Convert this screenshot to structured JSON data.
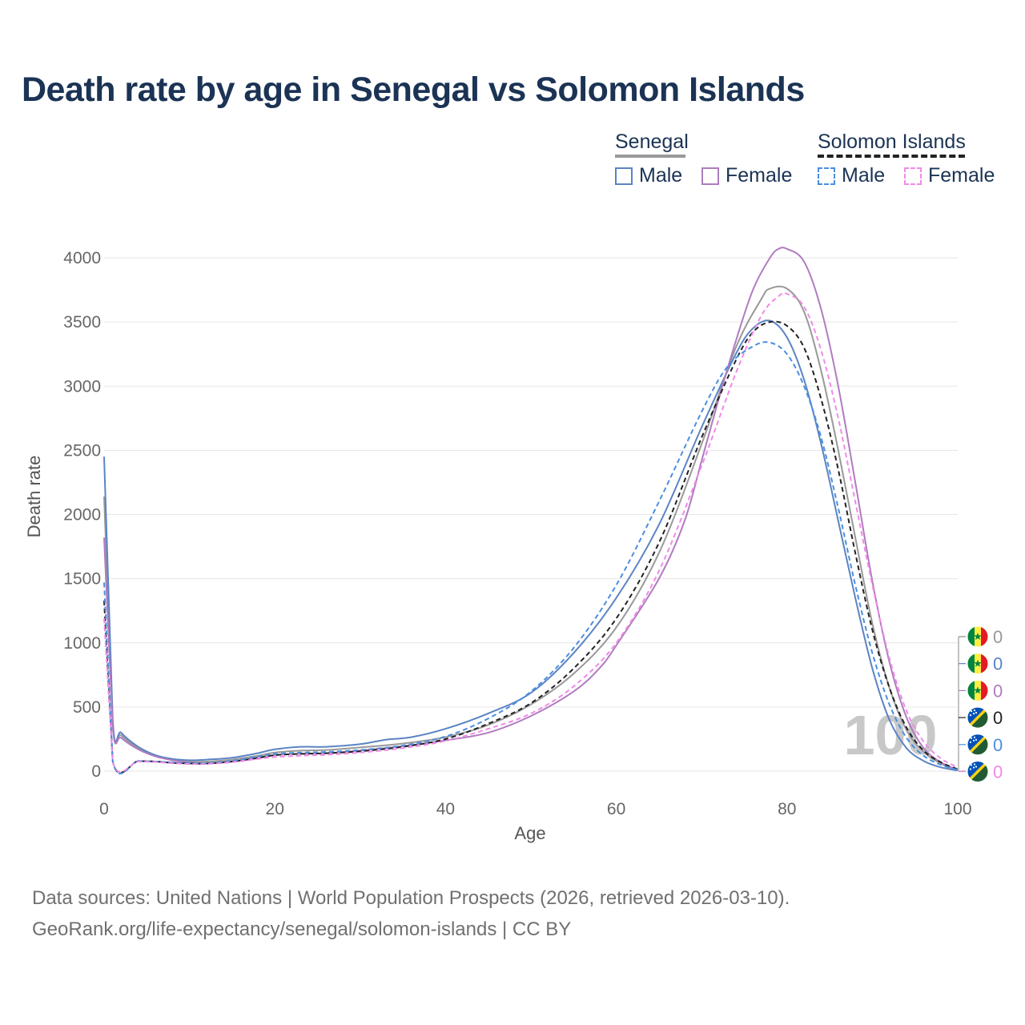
{
  "title": "Death rate by age in Senegal vs Solomon Islands",
  "legend": {
    "groups": [
      {
        "name": "Senegal",
        "underline_color": "#999999",
        "underline_style": "solid",
        "items": [
          {
            "label": "Male",
            "color": "#5b84c4",
            "dashed": false
          },
          {
            "label": "Female",
            "color": "#b07cc0",
            "dashed": false
          }
        ]
      },
      {
        "name": "Solomon Islands",
        "underline_color": "#222222",
        "underline_style": "dashed",
        "items": [
          {
            "label": "Male",
            "color": "#4a8ee0",
            "dashed": true
          },
          {
            "label": "Female",
            "color": "#f08ae8",
            "dashed": true
          }
        ]
      }
    ]
  },
  "chart_data": {
    "type": "line",
    "title": "Death rate by age in Senegal vs Solomon Islands",
    "xlabel": "Age",
    "ylabel": "Death rate",
    "xlim": [
      0,
      100
    ],
    "ylim": [
      0,
      4000
    ],
    "xticks": [
      0,
      20,
      40,
      60,
      80,
      100
    ],
    "yticks": [
      0,
      500,
      1000,
      1500,
      2000,
      2500,
      3000,
      3500,
      4000
    ],
    "grid": true,
    "watermark": "100",
    "series": [
      {
        "name": "Senegal (total)",
        "color": "#999999",
        "dashed": false,
        "points": [
          [
            0,
            2140
          ],
          [
            1,
            380
          ],
          [
            2,
            280
          ],
          [
            4,
            180
          ],
          [
            6,
            120
          ],
          [
            8,
            90
          ],
          [
            10,
            75
          ],
          [
            12,
            75
          ],
          [
            15,
            90
          ],
          [
            18,
            120
          ],
          [
            20,
            145
          ],
          [
            23,
            160
          ],
          [
            26,
            165
          ],
          [
            30,
            185
          ],
          [
            35,
            215
          ],
          [
            40,
            265
          ],
          [
            45,
            360
          ],
          [
            50,
            520
          ],
          [
            55,
            760
          ],
          [
            60,
            1120
          ],
          [
            65,
            1700
          ],
          [
            70,
            2550
          ],
          [
            74,
            3300
          ],
          [
            77,
            3680
          ],
          [
            78,
            3760
          ],
          [
            80,
            3760
          ],
          [
            82,
            3580
          ],
          [
            84,
            3120
          ],
          [
            86,
            2500
          ],
          [
            88,
            1820
          ],
          [
            90,
            1150
          ],
          [
            92,
            650
          ],
          [
            94,
            320
          ],
          [
            96,
            150
          ],
          [
            98,
            60
          ],
          [
            100,
            5
          ]
        ]
      },
      {
        "name": "Senegal Male",
        "color": "#5b84c4",
        "dashed": false,
        "points": [
          [
            0,
            2450
          ],
          [
            1,
            410
          ],
          [
            2,
            300
          ],
          [
            4,
            190
          ],
          [
            6,
            125
          ],
          [
            8,
            95
          ],
          [
            10,
            85
          ],
          [
            12,
            90
          ],
          [
            15,
            105
          ],
          [
            18,
            140
          ],
          [
            20,
            170
          ],
          [
            23,
            190
          ],
          [
            26,
            190
          ],
          [
            30,
            210
          ],
          [
            33,
            245
          ],
          [
            36,
            265
          ],
          [
            40,
            330
          ],
          [
            45,
            450
          ],
          [
            50,
            610
          ],
          [
            55,
            920
          ],
          [
            60,
            1350
          ],
          [
            65,
            1920
          ],
          [
            70,
            2680
          ],
          [
            74,
            3250
          ],
          [
            76,
            3450
          ],
          [
            78,
            3510
          ],
          [
            80,
            3380
          ],
          [
            82,
            3050
          ],
          [
            84,
            2550
          ],
          [
            86,
            1950
          ],
          [
            88,
            1350
          ],
          [
            90,
            800
          ],
          [
            92,
            400
          ],
          [
            94,
            180
          ],
          [
            96,
            80
          ],
          [
            98,
            30
          ],
          [
            100,
            5
          ]
        ]
      },
      {
        "name": "Senegal Female",
        "color": "#b07cc0",
        "dashed": false,
        "points": [
          [
            0,
            1820
          ],
          [
            1,
            350
          ],
          [
            2,
            260
          ],
          [
            4,
            170
          ],
          [
            6,
            115
          ],
          [
            8,
            85
          ],
          [
            10,
            65
          ],
          [
            12,
            60
          ],
          [
            15,
            75
          ],
          [
            18,
            100
          ],
          [
            20,
            125
          ],
          [
            23,
            135
          ],
          [
            26,
            140
          ],
          [
            30,
            160
          ],
          [
            35,
            195
          ],
          [
            40,
            240
          ],
          [
            45,
            300
          ],
          [
            50,
            430
          ],
          [
            55,
            620
          ],
          [
            58,
            800
          ],
          [
            60,
            980
          ],
          [
            65,
            1500
          ],
          [
            68,
            1950
          ],
          [
            70,
            2420
          ],
          [
            72,
            2900
          ],
          [
            74,
            3350
          ],
          [
            76,
            3750
          ],
          [
            78,
            4000
          ],
          [
            79,
            4070
          ],
          [
            80,
            4070
          ],
          [
            82,
            3970
          ],
          [
            84,
            3600
          ],
          [
            86,
            3000
          ],
          [
            88,
            2250
          ],
          [
            90,
            1480
          ],
          [
            92,
            850
          ],
          [
            94,
            420
          ],
          [
            96,
            180
          ],
          [
            98,
            70
          ],
          [
            100,
            10
          ]
        ]
      },
      {
        "name": "Solomon Islands (total)",
        "color": "#222222",
        "dashed": true,
        "points": [
          [
            0,
            1330
          ],
          [
            1,
            80
          ],
          [
            4,
            78
          ],
          [
            6,
            75
          ],
          [
            8,
            65
          ],
          [
            10,
            60
          ],
          [
            12,
            60
          ],
          [
            15,
            75
          ],
          [
            18,
            105
          ],
          [
            20,
            125
          ],
          [
            23,
            135
          ],
          [
            26,
            140
          ],
          [
            30,
            155
          ],
          [
            35,
            190
          ],
          [
            40,
            250
          ],
          [
            45,
            370
          ],
          [
            50,
            530
          ],
          [
            55,
            800
          ],
          [
            60,
            1190
          ],
          [
            65,
            1780
          ],
          [
            70,
            2600
          ],
          [
            74,
            3200
          ],
          [
            76,
            3420
          ],
          [
            78,
            3500
          ],
          [
            80,
            3470
          ],
          [
            82,
            3300
          ],
          [
            84,
            2900
          ],
          [
            86,
            2350
          ],
          [
            88,
            1700
          ],
          [
            90,
            1100
          ],
          [
            92,
            650
          ],
          [
            94,
            340
          ],
          [
            96,
            160
          ],
          [
            98,
            70
          ],
          [
            100,
            15
          ]
        ]
      },
      {
        "name": "Solomon Islands Male",
        "color": "#4a8ee0",
        "dashed": true,
        "points": [
          [
            0,
            1470
          ],
          [
            1,
            85
          ],
          [
            4,
            80
          ],
          [
            6,
            75
          ],
          [
            8,
            68
          ],
          [
            10,
            62
          ],
          [
            12,
            62
          ],
          [
            15,
            80
          ],
          [
            18,
            115
          ],
          [
            20,
            135
          ],
          [
            23,
            145
          ],
          [
            26,
            150
          ],
          [
            30,
            165
          ],
          [
            35,
            200
          ],
          [
            40,
            270
          ],
          [
            45,
            410
          ],
          [
            50,
            620
          ],
          [
            55,
            960
          ],
          [
            60,
            1450
          ],
          [
            65,
            2100
          ],
          [
            70,
            2800
          ],
          [
            73,
            3150
          ],
          [
            76,
            3310
          ],
          [
            78,
            3340
          ],
          [
            80,
            3250
          ],
          [
            82,
            3000
          ],
          [
            84,
            2600
          ],
          [
            86,
            2050
          ],
          [
            88,
            1450
          ],
          [
            90,
            920
          ],
          [
            92,
            520
          ],
          [
            94,
            260
          ],
          [
            96,
            120
          ],
          [
            98,
            50
          ],
          [
            100,
            10
          ]
        ]
      },
      {
        "name": "Solomon Islands Female",
        "color": "#f08ae8",
        "dashed": true,
        "points": [
          [
            0,
            1190
          ],
          [
            1,
            78
          ],
          [
            4,
            75
          ],
          [
            6,
            72
          ],
          [
            8,
            62
          ],
          [
            10,
            56
          ],
          [
            12,
            56
          ],
          [
            15,
            70
          ],
          [
            18,
            95
          ],
          [
            20,
            110
          ],
          [
            23,
            120
          ],
          [
            26,
            128
          ],
          [
            30,
            145
          ],
          [
            35,
            180
          ],
          [
            40,
            235
          ],
          [
            45,
            330
          ],
          [
            50,
            450
          ],
          [
            55,
            660
          ],
          [
            60,
            1000
          ],
          [
            65,
            1560
          ],
          [
            70,
            2380
          ],
          [
            74,
            3100
          ],
          [
            77,
            3550
          ],
          [
            79,
            3700
          ],
          [
            80,
            3720
          ],
          [
            82,
            3620
          ],
          [
            84,
            3280
          ],
          [
            86,
            2750
          ],
          [
            88,
            2100
          ],
          [
            90,
            1450
          ],
          [
            92,
            880
          ],
          [
            94,
            470
          ],
          [
            96,
            230
          ],
          [
            98,
            100
          ],
          [
            100,
            30
          ]
        ]
      }
    ],
    "end_labels": [
      {
        "country": "Senegal",
        "value": "0",
        "color": "#999999"
      },
      {
        "country": "Senegal",
        "value": "0",
        "color": "#5b84c4"
      },
      {
        "country": "Senegal",
        "value": "0",
        "color": "#b07cc0"
      },
      {
        "country": "Solomon Islands",
        "value": "0",
        "color": "#222222"
      },
      {
        "country": "Solomon Islands",
        "value": "0",
        "color": "#4a8ee0"
      },
      {
        "country": "Solomon Islands",
        "value": "0",
        "color": "#f08ae8"
      }
    ]
  },
  "footer": {
    "line1": "Data sources: United Nations | World Population Prospects (2026, retrieved 2026-03-10).",
    "line2": "GeoRank.org/life-expectancy/senegal/solomon-islands | CC BY"
  }
}
